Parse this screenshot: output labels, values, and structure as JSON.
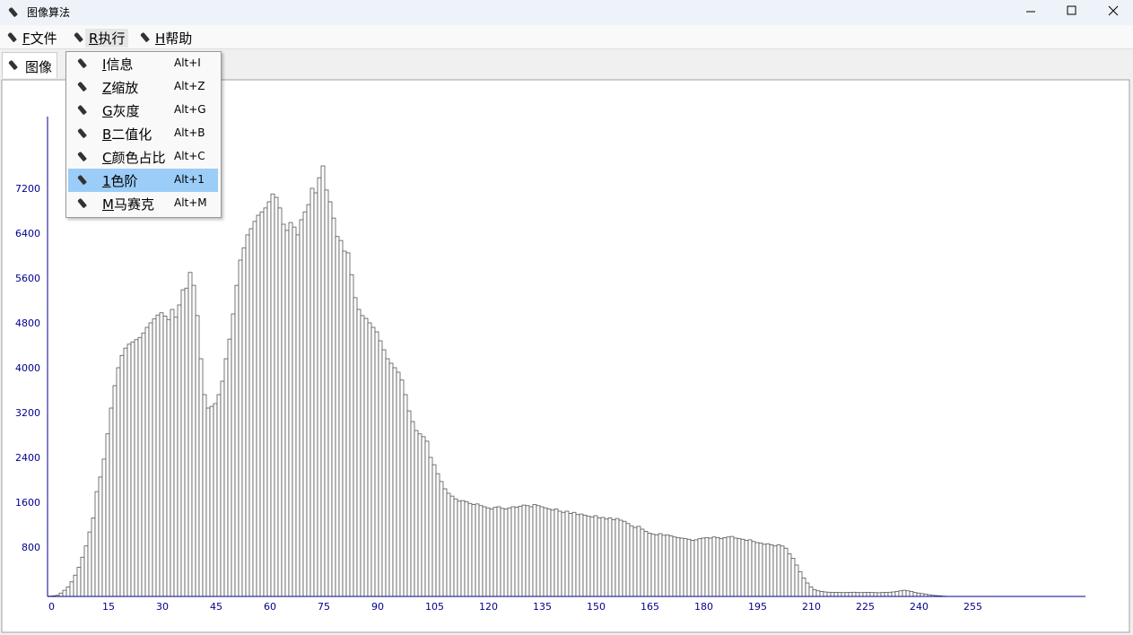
{
  "window": {
    "title": "图像算法"
  },
  "menu": [
    "F文件",
    "R执行",
    "H帮助"
  ],
  "tabs": [
    "图像"
  ],
  "dropdown": {
    "items": [
      {
        "label": "I信息",
        "shortcut": "Alt+I"
      },
      {
        "label": "Z缩放",
        "shortcut": "Alt+Z"
      },
      {
        "label": "G灰度",
        "shortcut": "Alt+G"
      },
      {
        "label": "B二值化",
        "shortcut": "Alt+B"
      },
      {
        "label": "C颜色占比",
        "shortcut": "Alt+C"
      },
      {
        "label": "1色阶",
        "shortcut": "Alt+1"
      },
      {
        "label": "M马赛克",
        "shortcut": "Alt+M"
      }
    ],
    "highlighted": 5
  },
  "chart_data": {
    "type": "bar",
    "color": "#ffffff",
    "edge_color": "#555555",
    "axis_color": "#00008b",
    "x": [
      0,
      1,
      2,
      3,
      4,
      5,
      6,
      7,
      8,
      9,
      10,
      11,
      12,
      13,
      14,
      15,
      16,
      17,
      18,
      19,
      20,
      21,
      22,
      23,
      24,
      25,
      26,
      27,
      28,
      29,
      30,
      31,
      32,
      33,
      34,
      35,
      36,
      37,
      38,
      39,
      40,
      41,
      42,
      43,
      44,
      45,
      46,
      47,
      48,
      49,
      50,
      51,
      52,
      53,
      54,
      55,
      56,
      57,
      58,
      59,
      60,
      61,
      62,
      63,
      64,
      65,
      66,
      67,
      68,
      69,
      70,
      71,
      72,
      73,
      74,
      75,
      76,
      77,
      78,
      79,
      80,
      81,
      82,
      83,
      84,
      85,
      86,
      87,
      88,
      89,
      90,
      91,
      92,
      93,
      94,
      95,
      96,
      97,
      98,
      99,
      100,
      101,
      102,
      103,
      104,
      105,
      106,
      107,
      108,
      109,
      110,
      111,
      112,
      113,
      114,
      115,
      116,
      117,
      118,
      119,
      120,
      121,
      122,
      123,
      124,
      125,
      126,
      127,
      128,
      129,
      130,
      131,
      132,
      133,
      134,
      135,
      136,
      137,
      138,
      139,
      140,
      141,
      142,
      143,
      144,
      145,
      146,
      147,
      148,
      149,
      150,
      151,
      152,
      153,
      154,
      155,
      156,
      157,
      158,
      159,
      160,
      161,
      162,
      163,
      164,
      165,
      166,
      167,
      168,
      169,
      170,
      171,
      172,
      173,
      174,
      175,
      176,
      177,
      178,
      179,
      180,
      181,
      182,
      183,
      184,
      185,
      186,
      187,
      188,
      189,
      190,
      191,
      192,
      193,
      194,
      195,
      196,
      197,
      198,
      199,
      200,
      201,
      202,
      203,
      204,
      205,
      206,
      207,
      208,
      209,
      210,
      211,
      212,
      213,
      214,
      215,
      216,
      217,
      218,
      219,
      220,
      221,
      222,
      223,
      224,
      225,
      226,
      227,
      228,
      229,
      230,
      231,
      232,
      233,
      234,
      235,
      236,
      237,
      238,
      239,
      240,
      241,
      242,
      243,
      244,
      245,
      246,
      247,
      248,
      249,
      250,
      251,
      252,
      253,
      254,
      255
    ],
    "values": [
      5,
      10,
      20,
      60,
      110,
      170,
      260,
      380,
      520,
      700,
      900,
      1150,
      1400,
      1870,
      2130,
      2450,
      2900,
      3360,
      3760,
      4080,
      4300,
      4430,
      4500,
      4540,
      4580,
      4620,
      4700,
      4800,
      4880,
      4950,
      5020,
      5060,
      5000,
      4940,
      5120,
      4980,
      5200,
      5470,
      5500,
      5780,
      5550,
      5010,
      4240,
      3600,
      3360,
      3390,
      3440,
      3600,
      3840,
      4240,
      4590,
      5040,
      5550,
      6000,
      6220,
      6450,
      6560,
      6690,
      6800,
      6860,
      6930,
      7040,
      7180,
      7120,
      6930,
      6640,
      6530,
      6670,
      6590,
      6450,
      6720,
      6860,
      6990,
      7280,
      7200,
      7470,
      7680,
      7250,
      7040,
      6750,
      6420,
      6350,
      6160,
      6130,
      5740,
      5330,
      5120,
      5010,
      4960,
      4880,
      4800,
      4720,
      4560,
      4400,
      4240,
      4160,
      4080,
      4000,
      3860,
      3600,
      3310,
      3120,
      2960,
      2900,
      2850,
      2770,
      2480,
      2350,
      2190,
      2050,
      1920,
      1840,
      1790,
      1740,
      1700,
      1710,
      1690,
      1660,
      1640,
      1650,
      1620,
      1600,
      1580,
      1560,
      1590,
      1600,
      1570,
      1560,
      1580,
      1600,
      1590,
      1610,
      1630,
      1620,
      1600,
      1640,
      1620,
      1600,
      1580,
      1560,
      1540,
      1560,
      1520,
      1500,
      1520,
      1480,
      1500,
      1460,
      1470,
      1450,
      1430,
      1420,
      1440,
      1400,
      1410,
      1380,
      1400,
      1370,
      1390,
      1360,
      1340,
      1300,
      1260,
      1230,
      1250,
      1200,
      1160,
      1130,
      1110,
      1100,
      1120,
      1090,
      1100,
      1080,
      1060,
      1050,
      1040,
      1030,
      1020,
      1000,
      1010,
      1030,
      1040,
      1050,
      1040,
      1060,
      1050,
      1030,
      1050,
      1060,
      1070,
      1040,
      1030,
      1020,
      1000,
      1010,
      980,
      960,
      950,
      930,
      940,
      920,
      900,
      920,
      900,
      860,
      760,
      680,
      560,
      440,
      330,
      240,
      170,
      120,
      100,
      90,
      80,
      75,
      70,
      72,
      70,
      68,
      70,
      72,
      75,
      70,
      68,
      70,
      72,
      70,
      68,
      66,
      70,
      72,
      75,
      80,
      90,
      100,
      110,
      100,
      90,
      70,
      60,
      50,
      40,
      30,
      20,
      15,
      10,
      5,
      0,
      0,
      0,
      0,
      0,
      0
    ],
    "xlim": [
      0,
      289
    ],
    "ylim": [
      0,
      8560
    ],
    "xticks": [
      0,
      15,
      30,
      45,
      60,
      75,
      90,
      105,
      120,
      135,
      150,
      165,
      180,
      195,
      210,
      225,
      240,
      255
    ],
    "yticks": [
      800,
      1600,
      2400,
      3200,
      4000,
      4800,
      5600,
      6400,
      7200
    ],
    "grid": false
  }
}
